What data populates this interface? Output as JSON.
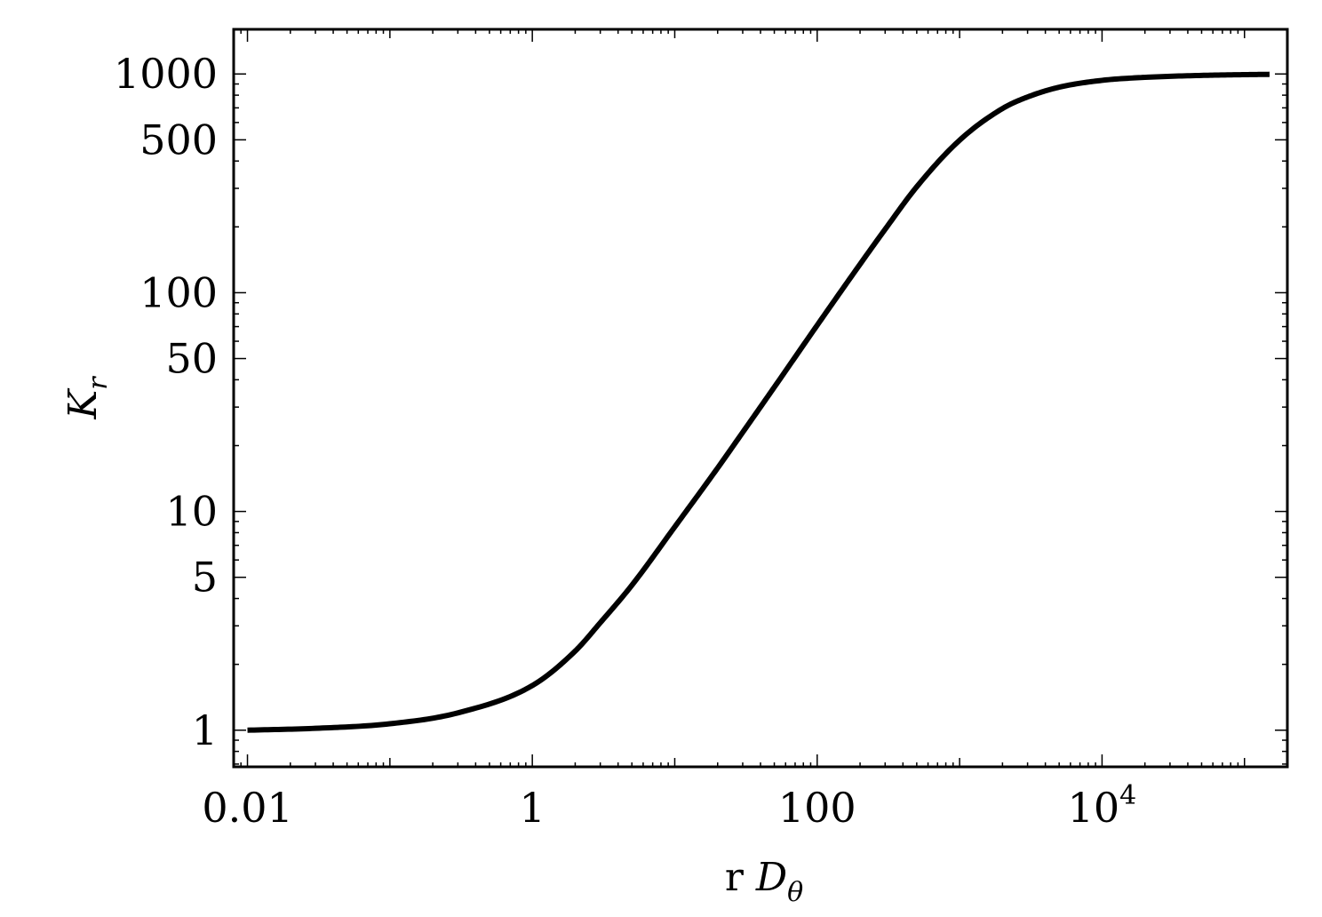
{
  "chart_data": {
    "type": "line",
    "title": "",
    "xlabel": {
      "main": "r ",
      "italic": "D",
      "sub": "θ"
    },
    "ylabel": {
      "italic": "K",
      "sub": "r"
    },
    "x_scale": "log",
    "y_scale": "log",
    "xlim": [
      0.008,
      200000
    ],
    "ylim": [
      0.68,
      1600
    ],
    "x_ticks": [
      {
        "value": 0.01,
        "label": "0.01"
      },
      {
        "value": 1,
        "label": "1"
      },
      {
        "value": 100,
        "label": "100"
      },
      {
        "value": 10000,
        "label": "10",
        "sup": "4"
      }
    ],
    "y_ticks": [
      {
        "value": 1,
        "label": "1"
      },
      {
        "value": 5,
        "label": "5"
      },
      {
        "value": 10,
        "label": "10"
      },
      {
        "value": 50,
        "label": "50"
      },
      {
        "value": 100,
        "label": "100"
      },
      {
        "value": 500,
        "label": "500"
      },
      {
        "value": 1000,
        "label": "1000"
      }
    ],
    "grid": false,
    "series": [
      {
        "color": "#000000",
        "x": [
          0.01,
          0.03,
          0.1,
          0.3,
          1,
          2,
          3,
          5,
          10,
          20,
          30,
          50,
          100,
          200,
          300,
          500,
          1000,
          2000,
          3000,
          5000,
          10000,
          20000,
          50000,
          100000,
          150000
        ],
        "y": [
          1.0,
          1.02,
          1.07,
          1.2,
          1.6,
          2.3,
          3.1,
          4.6,
          8.5,
          15.8,
          23,
          37,
          71,
          135,
          195,
          305,
          498,
          695,
          785,
          870,
          935,
          965,
          985,
          993,
          996
        ]
      }
    ]
  }
}
